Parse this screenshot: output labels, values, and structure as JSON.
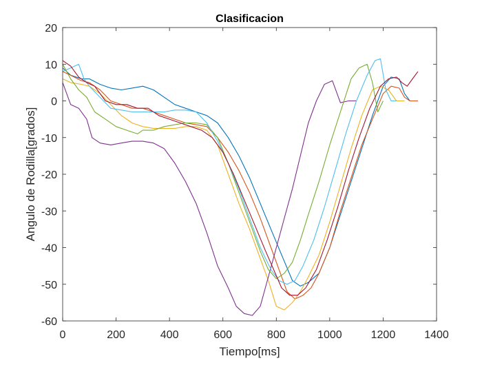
{
  "chart_data": {
    "type": "line",
    "title": "Clasificacion",
    "xlabel": "Tiempo[ms]",
    "ylabel": "Angulo de Rodilla[grados]",
    "xlim": [
      0,
      1400
    ],
    "ylim": [
      -60,
      20
    ],
    "xticks": [
      0,
      200,
      400,
      600,
      800,
      1000,
      1200,
      1400
    ],
    "yticks": [
      20,
      10,
      0,
      -10,
      -20,
      -30,
      -40,
      -50,
      -60
    ],
    "grid": false,
    "legend": "none",
    "series": [
      {
        "color": "#0072BD",
        "points": [
          [
            0,
            9
          ],
          [
            30,
            7
          ],
          [
            70,
            6
          ],
          [
            100,
            6
          ],
          [
            140,
            4.5
          ],
          [
            180,
            3.5
          ],
          [
            220,
            3
          ],
          [
            260,
            3.5
          ],
          [
            300,
            4
          ],
          [
            340,
            3
          ],
          [
            380,
            1
          ],
          [
            420,
            -1
          ],
          [
            460,
            -2
          ],
          [
            500,
            -3
          ],
          [
            540,
            -4
          ],
          [
            580,
            -6
          ],
          [
            620,
            -10
          ],
          [
            660,
            -15
          ],
          [
            700,
            -21
          ],
          [
            740,
            -28
          ],
          [
            780,
            -35
          ],
          [
            820,
            -42
          ],
          [
            860,
            -49
          ],
          [
            890,
            -50.5
          ],
          [
            920,
            -49.5
          ],
          [
            960,
            -47
          ],
          [
            1000,
            -40
          ],
          [
            1040,
            -31
          ],
          [
            1080,
            -22
          ],
          [
            1120,
            -13
          ],
          [
            1160,
            -4
          ],
          [
            1200,
            4
          ],
          [
            1230,
            6.5
          ],
          [
            1260,
            6
          ],
          [
            1280,
            2
          ],
          [
            1300,
            0
          ],
          [
            1330,
            0
          ]
        ]
      },
      {
        "color": "#D95319",
        "points": [
          [
            0,
            8
          ],
          [
            30,
            7
          ],
          [
            70,
            5.5
          ],
          [
            100,
            5
          ],
          [
            140,
            3
          ],
          [
            180,
            0
          ],
          [
            220,
            -1
          ],
          [
            260,
            -2
          ],
          [
            300,
            -2
          ],
          [
            340,
            -3
          ],
          [
            380,
            -4
          ],
          [
            420,
            -5
          ],
          [
            460,
            -6
          ],
          [
            500,
            -6.5
          ],
          [
            540,
            -7
          ],
          [
            580,
            -10
          ],
          [
            620,
            -14
          ],
          [
            660,
            -19
          ],
          [
            700,
            -25
          ],
          [
            740,
            -32
          ],
          [
            780,
            -40
          ],
          [
            810,
            -46
          ],
          [
            840,
            -52
          ],
          [
            870,
            -54
          ],
          [
            900,
            -53
          ],
          [
            930,
            -51
          ],
          [
            960,
            -47
          ],
          [
            1000,
            -40
          ],
          [
            1040,
            -30
          ],
          [
            1080,
            -21
          ],
          [
            1120,
            -12
          ],
          [
            1160,
            -5
          ],
          [
            1200,
            2
          ],
          [
            1230,
            4
          ],
          [
            1260,
            3.5
          ],
          [
            1280,
            1
          ],
          [
            1300,
            0
          ],
          [
            1330,
            0
          ]
        ]
      },
      {
        "color": "#EDB120",
        "points": [
          [
            0,
            6
          ],
          [
            30,
            5
          ],
          [
            70,
            4.5
          ],
          [
            100,
            4
          ],
          [
            140,
            2
          ],
          [
            180,
            -1
          ],
          [
            220,
            -4
          ],
          [
            260,
            -6
          ],
          [
            300,
            -7
          ],
          [
            340,
            -7.5
          ],
          [
            380,
            -7.5
          ],
          [
            420,
            -7.5
          ],
          [
            460,
            -7
          ],
          [
            500,
            -7
          ],
          [
            540,
            -8
          ],
          [
            580,
            -12
          ],
          [
            620,
            -20
          ],
          [
            660,
            -28
          ],
          [
            700,
            -35
          ],
          [
            740,
            -43
          ],
          [
            770,
            -49
          ],
          [
            800,
            -56
          ],
          [
            830,
            -57
          ],
          [
            860,
            -55
          ],
          [
            890,
            -52
          ],
          [
            920,
            -48
          ],
          [
            960,
            -42
          ],
          [
            1000,
            -33
          ],
          [
            1040,
            -23
          ],
          [
            1080,
            -13
          ],
          [
            1120,
            -4
          ],
          [
            1160,
            3
          ],
          [
            1190,
            4
          ],
          [
            1220,
            3
          ],
          [
            1250,
            0
          ],
          [
            1280,
            0
          ]
        ]
      },
      {
        "color": "#7E2F8E",
        "points": [
          [
            0,
            5
          ],
          [
            30,
            -1
          ],
          [
            60,
            -2
          ],
          [
            90,
            -5
          ],
          [
            110,
            -10
          ],
          [
            140,
            -11.5
          ],
          [
            180,
            -12
          ],
          [
            220,
            -11.5
          ],
          [
            260,
            -11
          ],
          [
            300,
            -11
          ],
          [
            340,
            -11.5
          ],
          [
            380,
            -13
          ],
          [
            420,
            -17
          ],
          [
            460,
            -22
          ],
          [
            500,
            -28
          ],
          [
            540,
            -36
          ],
          [
            580,
            -45
          ],
          [
            620,
            -51
          ],
          [
            650,
            -56
          ],
          [
            680,
            -58
          ],
          [
            710,
            -58.5
          ],
          [
            740,
            -56
          ],
          [
            770,
            -48
          ],
          [
            800,
            -40
          ],
          [
            830,
            -32
          ],
          [
            860,
            -24
          ],
          [
            890,
            -15
          ],
          [
            920,
            -6
          ],
          [
            950,
            0
          ],
          [
            980,
            4.5
          ],
          [
            1010,
            5.5
          ],
          [
            1040,
            -0.5
          ],
          [
            1070,
            0
          ],
          [
            1100,
            0
          ]
        ]
      },
      {
        "color": "#77AC30",
        "points": [
          [
            0,
            10
          ],
          [
            30,
            6
          ],
          [
            60,
            3
          ],
          [
            90,
            1
          ],
          [
            120,
            -3
          ],
          [
            160,
            -5
          ],
          [
            200,
            -7
          ],
          [
            240,
            -8
          ],
          [
            280,
            -9
          ],
          [
            300,
            -8
          ],
          [
            340,
            -8
          ],
          [
            380,
            -7
          ],
          [
            420,
            -6.5
          ],
          [
            460,
            -6
          ],
          [
            500,
            -6
          ],
          [
            540,
            -6.5
          ],
          [
            580,
            -10
          ],
          [
            620,
            -17
          ],
          [
            660,
            -25
          ],
          [
            700,
            -33
          ],
          [
            740,
            -41
          ],
          [
            770,
            -46
          ],
          [
            800,
            -48.5
          ],
          [
            830,
            -47
          ],
          [
            860,
            -44
          ],
          [
            890,
            -38
          ],
          [
            920,
            -31
          ],
          [
            960,
            -22
          ],
          [
            1000,
            -12
          ],
          [
            1040,
            -3
          ],
          [
            1080,
            6
          ],
          [
            1110,
            9
          ],
          [
            1140,
            10
          ],
          [
            1160,
            5
          ],
          [
            1180,
            -3
          ],
          [
            1200,
            0
          ]
        ]
      },
      {
        "color": "#4DBEEE",
        "points": [
          [
            0,
            8
          ],
          [
            30,
            9
          ],
          [
            60,
            10
          ],
          [
            80,
            6
          ],
          [
            100,
            4
          ],
          [
            140,
            1
          ],
          [
            180,
            -2
          ],
          [
            220,
            -2.5
          ],
          [
            260,
            -3
          ],
          [
            300,
            -3
          ],
          [
            340,
            -3
          ],
          [
            380,
            -3
          ],
          [
            420,
            -2.5
          ],
          [
            460,
            -2.5
          ],
          [
            500,
            -3
          ],
          [
            540,
            -6
          ],
          [
            580,
            -11
          ],
          [
            620,
            -17
          ],
          [
            660,
            -24
          ],
          [
            700,
            -32
          ],
          [
            740,
            -40
          ],
          [
            780,
            -46
          ],
          [
            810,
            -49
          ],
          [
            840,
            -50
          ],
          [
            870,
            -49
          ],
          [
            900,
            -45
          ],
          [
            940,
            -38
          ],
          [
            980,
            -29
          ],
          [
            1020,
            -19
          ],
          [
            1060,
            -9
          ],
          [
            1100,
            0
          ],
          [
            1140,
            7
          ],
          [
            1170,
            11
          ],
          [
            1190,
            11.5
          ],
          [
            1210,
            3
          ],
          [
            1230,
            0
          ],
          [
            1250,
            0
          ]
        ]
      },
      {
        "color": "#A2142F",
        "points": [
          [
            0,
            11
          ],
          [
            30,
            9.5
          ],
          [
            60,
            6.5
          ],
          [
            90,
            5
          ],
          [
            120,
            4
          ],
          [
            160,
            0
          ],
          [
            200,
            -1
          ],
          [
            240,
            -1
          ],
          [
            280,
            -2
          ],
          [
            320,
            -2
          ],
          [
            360,
            -4
          ],
          [
            400,
            -5
          ],
          [
            440,
            -6
          ],
          [
            480,
            -7
          ],
          [
            520,
            -8
          ],
          [
            560,
            -10
          ],
          [
            600,
            -14
          ],
          [
            640,
            -20
          ],
          [
            680,
            -27
          ],
          [
            720,
            -34
          ],
          [
            760,
            -41
          ],
          [
            790,
            -46
          ],
          [
            820,
            -51
          ],
          [
            850,
            -53
          ],
          [
            880,
            -53
          ],
          [
            910,
            -51
          ],
          [
            950,
            -46
          ],
          [
            990,
            -38
          ],
          [
            1030,
            -29
          ],
          [
            1070,
            -19
          ],
          [
            1110,
            -10
          ],
          [
            1150,
            -2
          ],
          [
            1190,
            4
          ],
          [
            1220,
            6
          ],
          [
            1250,
            6.5
          ],
          [
            1270,
            5
          ],
          [
            1290,
            4
          ],
          [
            1310,
            6
          ],
          [
            1330,
            8
          ]
        ]
      }
    ]
  }
}
